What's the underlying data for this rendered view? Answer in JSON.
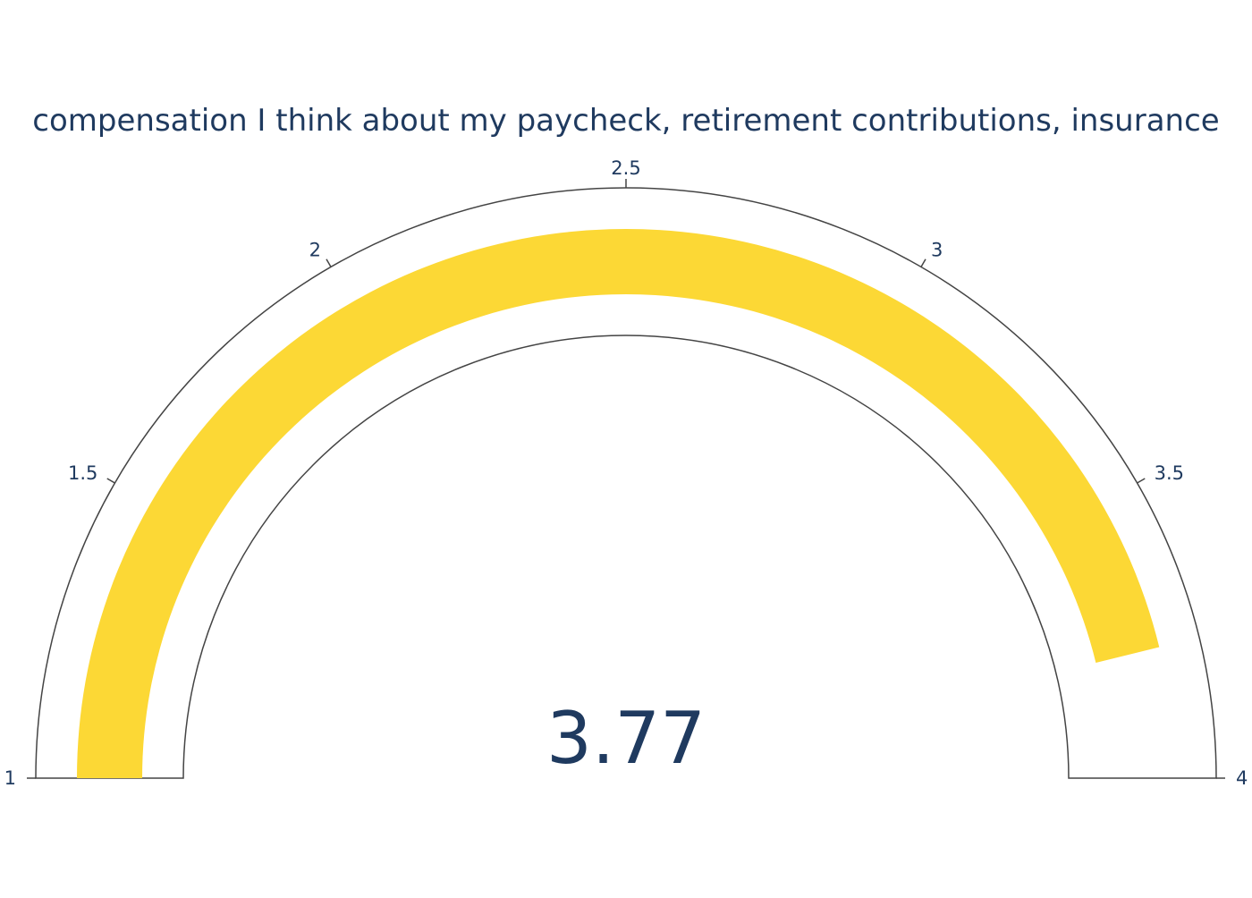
{
  "chart_data": {
    "type": "gauge",
    "title": "compensation I think about my paycheck, retirement contributions, insurance",
    "value": 3.77,
    "value_label": "3.77",
    "range": [
      1,
      4
    ],
    "ticks": [
      {
        "value": 1,
        "label": "1"
      },
      {
        "value": 1.5,
        "label": "1.5"
      },
      {
        "value": 2,
        "label": "2"
      },
      {
        "value": 2.5,
        "label": "2.5"
      },
      {
        "value": 3,
        "label": "3"
      },
      {
        "value": 3.5,
        "label": "3.5"
      },
      {
        "value": 4,
        "label": "4"
      }
    ],
    "colors": {
      "bar": "#fcd835",
      "text": "#1f3a5f",
      "outline": "#444444",
      "background": "#ffffff"
    }
  }
}
